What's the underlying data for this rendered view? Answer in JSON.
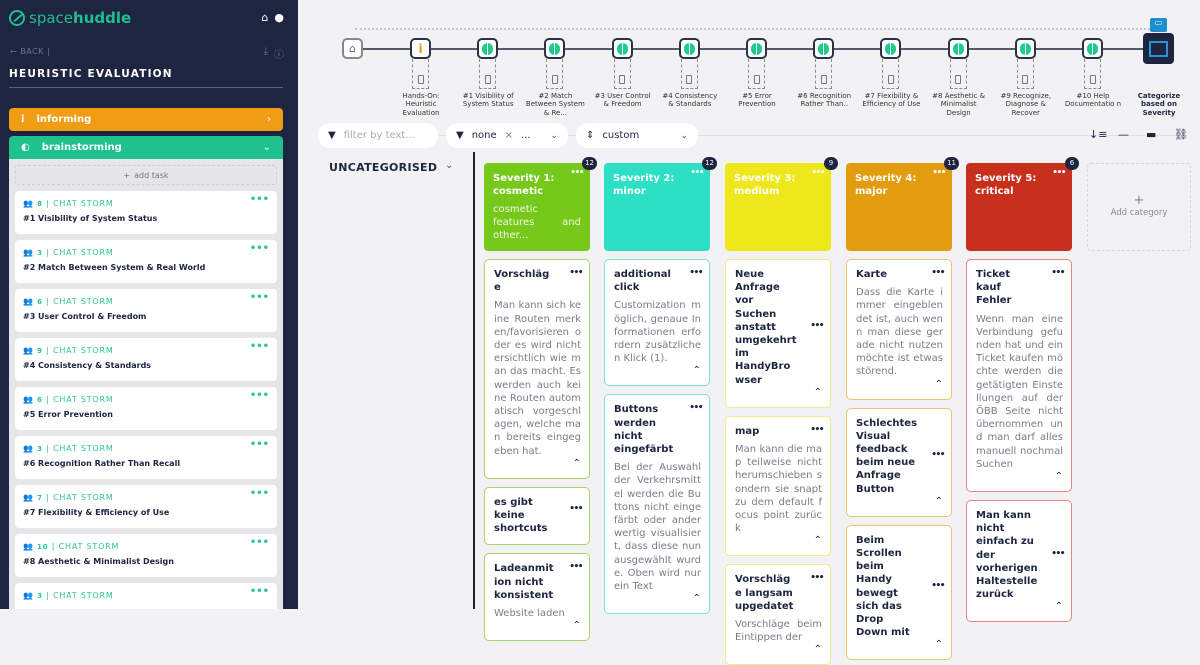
{
  "sidebar": {
    "logo_light": "space",
    "logo_bold": "huddle",
    "back_label": "BACK",
    "title": "HEURISTIC EVALUATION",
    "phases": [
      {
        "label": "informing",
        "color": "#f09c14"
      },
      {
        "label": "brainstorming",
        "color": "#1fc28f"
      }
    ],
    "add_task": "add task",
    "tasks": [
      {
        "count": "8",
        "type": "CHAT STORM",
        "name": "#1 Visibility of System Status"
      },
      {
        "count": "3",
        "type": "CHAT STORM",
        "name": "#2 Match Between System & Real World"
      },
      {
        "count": "6",
        "type": "CHAT STORM",
        "name": "#3 User Control & Freedom"
      },
      {
        "count": "9",
        "type": "CHAT STORM",
        "name": "#4 Consistency & Standards"
      },
      {
        "count": "6",
        "type": "CHAT STORM",
        "name": "#5 Error Prevention"
      },
      {
        "count": "3",
        "type": "CHAT STORM",
        "name": "#6 Recognition Rather Than Recall"
      },
      {
        "count": "7",
        "type": "CHAT STORM",
        "name": "#7 Flexibility & Efficiency of Use"
      },
      {
        "count": "10",
        "type": "CHAT STORM",
        "name": "#8 Aesthetic & Minimalist Design"
      },
      {
        "count": "3",
        "type": "CHAT STORM",
        "name": ""
      }
    ]
  },
  "timeline": {
    "steps": [
      {
        "label": "Hands-On: Heuristic Evaluation",
        "icon": "info-icon"
      },
      {
        "label": "#1 Visibility of System Status",
        "icon": "brain-icon"
      },
      {
        "label": "#2 Match Between System & Re...",
        "icon": "brain-icon"
      },
      {
        "label": "#3 User Control & Freedom",
        "icon": "brain-icon"
      },
      {
        "label": "#4 Consistency & Standards",
        "icon": "brain-icon"
      },
      {
        "label": "#5 Error Prevention",
        "icon": "brain-icon"
      },
      {
        "label": "#6 Recognition Rather Than..",
        "icon": "brain-icon"
      },
      {
        "label": "#7 Flexibility & Efficiency of Use",
        "icon": "brain-icon"
      },
      {
        "label": "#8 Aesthetic & Minimalist Design",
        "icon": "brain-icon"
      },
      {
        "label": "#9 Recognize, Diagnose & Recover",
        "icon": "brain-icon"
      },
      {
        "label": "#10 Help Documentatio n",
        "icon": "brain-icon"
      }
    ],
    "current": "Categorize based on Severity"
  },
  "filters": {
    "text_placeholder": "filter by text...",
    "state_value": "none",
    "state_more": "...",
    "sort_value": "custom"
  },
  "uncategorised": "UNCATEGORISED",
  "add_category": "Add category",
  "categories": [
    {
      "title": "Severity 1: cosmetic",
      "description": "cosmetic features and other...",
      "count": "12",
      "color": "#76c81a",
      "border": "#a6d66a",
      "cards": [
        {
          "title": "Vorschläge",
          "text": "Man kann sich keine Routen merken/favorisieren oder es wird nicht ersichtlich wie man das macht. Es werden auch keine Routen automatisch vorgeschlagen, welche man bereits eingegeben hat.",
          "expanded": true
        },
        {
          "title": "es gibt keine shortcuts",
          "text": "",
          "expanded": false
        },
        {
          "title": "Ladeanmition nicht konsistent",
          "text": "Website laden",
          "expanded": true
        }
      ]
    },
    {
      "title": "Severity 2: minor",
      "description": "",
      "count": "12",
      "color": "#2ddfc4",
      "border": "#7fe3d3",
      "cards": [
        {
          "title": "additional click",
          "text": "Customization möglich, genaue Informationen erfordern zusätzlichen Klick (1).",
          "expanded": true
        },
        {
          "title": "Buttons werden nicht eingefärbt",
          "text": "Bei der Auswahl der Verkehrsmittel werden die Buttons nicht eingefärbt oder anderwertig visualisiert, dass diese nun ausgewählt wurde. Oben wird nur ein Text",
          "expanded": true
        }
      ]
    },
    {
      "title": "Severity 3: medium",
      "description": "",
      "count": "9",
      "color": "#eee81a",
      "border": "#f1e98a",
      "cards": [
        {
          "title": "Neue Anfrage vor Suchen anstatt umgekehrt im HandyBrowser",
          "text": "",
          "expanded": true
        },
        {
          "title": "map",
          "text": "Man kann die map teilweise nicht herumschieben sondern sie snapt zu dem default focus point zurück",
          "expanded": true
        },
        {
          "title": "Vorschläge langsam upgedatet",
          "text": "Vorschläge beim Eintippen der",
          "expanded": true
        }
      ]
    },
    {
      "title": "Severity 4: major",
      "description": "",
      "count": "11",
      "color": "#e29d0e",
      "border": "#efc46c",
      "cards": [
        {
          "title": "Karte",
          "text": "Dass die Karte immer eingeblendet ist, auch wenn man diese gerade nicht nutzen möchte ist etwas störend.",
          "expanded": true
        },
        {
          "title": "Schlechtes Visual feedback beim neue Anfrage Button",
          "text": "",
          "expanded": true
        },
        {
          "title": "Beim Scrollen beim Handy bewegt sich das Drop Down mit",
          "text": "",
          "expanded": true
        }
      ]
    },
    {
      "title": "Severity 5: critical",
      "description": "",
      "count": "6",
      "color": "#c92f1d",
      "border": "#de8a80",
      "cards": [
        {
          "title": "Ticket kauf Fehler",
          "text": "Wenn man eine Verbindung gefunden hat und ein Ticket kaufen möchte werden die getätigten Einstellungen auf der ÖBB Seite nicht übernommen und man darf alles manuell nochmal Suchen",
          "expanded": true
        },
        {
          "title": "Man kann nicht einfach zu der vorherigen Haltestelle zurück",
          "text": "",
          "expanded": true
        }
      ]
    }
  ]
}
